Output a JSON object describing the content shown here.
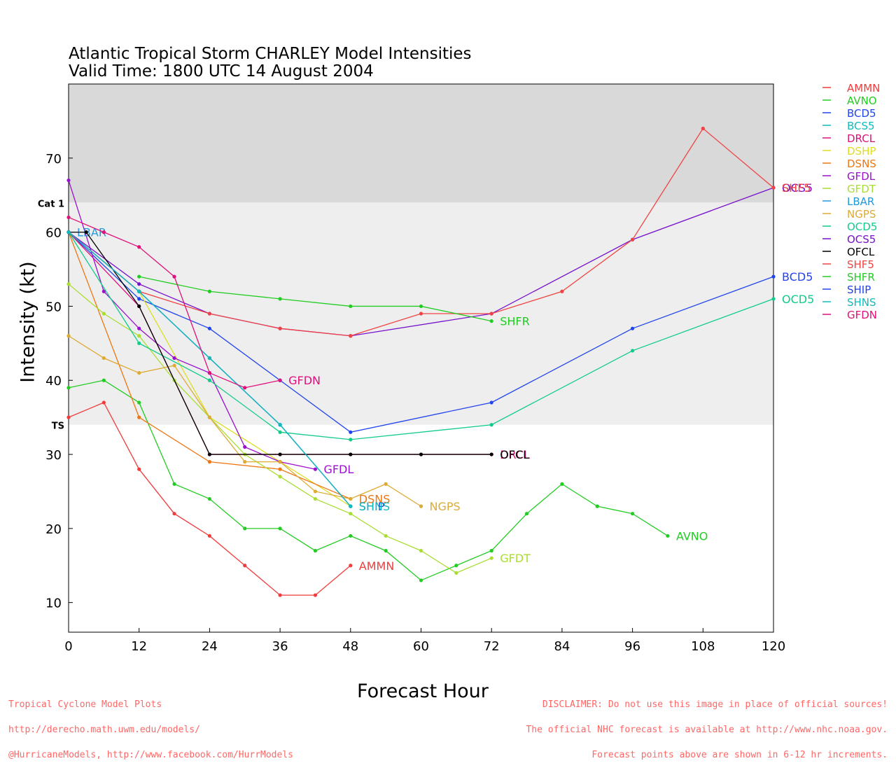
{
  "header": {
    "title": "Atlantic Tropical Storm CHARLEY Model Intensities",
    "subtitle": "Valid Time: 1800 UTC 14 August 2004"
  },
  "footer": {
    "left_lines": [
      "Tropical Cyclone Model Plots",
      "http://derecho.math.uwm.edu/models/",
      "@HurricaneModels, http://www.facebook.com/HurrModels"
    ],
    "right_lines": [
      "DISCLAIMER: Do not use this image in place of official sources!",
      "The official NHC forecast is available at http://www.nhc.noaa.gov.",
      "Forecast points above are shown in 6-12 hr increments."
    ]
  },
  "chart_data": {
    "type": "line",
    "title": "Atlantic Tropical Storm CHARLEY Model Intensities",
    "subtitle": "Valid Time: 1800 UTC 14 August 2004",
    "xlabel": "Forecast Hour",
    "ylabel": "Intensity (kt)",
    "xlim": [
      0,
      120
    ],
    "ylim": [
      6,
      80
    ],
    "x_ticks": [
      0,
      12,
      24,
      36,
      48,
      60,
      72,
      84,
      96,
      108,
      120
    ],
    "y_ticks": [
      10,
      20,
      30,
      40,
      50,
      60,
      70
    ],
    "bands": [
      {
        "label": "Cat 1",
        "from": 64,
        "to": 80,
        "color": "#d9d9d9"
      },
      {
        "label": "TS",
        "from": 34,
        "to": 64,
        "color": "#eeeeee"
      }
    ],
    "legend_position": "right",
    "series": [
      {
        "name": "AMMN",
        "color": "#f03c3c",
        "end_label": "AMMN",
        "points": [
          [
            0,
            35
          ],
          [
            6,
            37
          ],
          [
            12,
            28
          ],
          [
            18,
            22
          ],
          [
            24,
            19
          ],
          [
            30,
            15
          ],
          [
            36,
            11
          ],
          [
            42,
            11
          ],
          [
            48,
            15
          ]
        ]
      },
      {
        "name": "AVNO",
        "color": "#22cc22",
        "end_label": "AVNO",
        "points": [
          [
            0,
            39
          ],
          [
            6,
            40
          ],
          [
            12,
            37
          ],
          [
            18,
            26
          ],
          [
            24,
            24
          ],
          [
            30,
            20
          ],
          [
            36,
            20
          ],
          [
            42,
            17
          ],
          [
            48,
            19
          ],
          [
            54,
            17
          ],
          [
            60,
            13
          ],
          [
            66,
            15
          ],
          [
            72,
            17
          ],
          [
            78,
            22
          ],
          [
            84,
            26
          ],
          [
            90,
            23
          ],
          [
            96,
            22
          ],
          [
            102,
            19
          ]
        ]
      },
      {
        "name": "BCD5",
        "color": "#2244ee",
        "end_label": "BCD5",
        "points": [
          [
            0,
            60
          ],
          [
            12,
            51
          ],
          [
            24,
            47
          ],
          [
            36,
            40
          ],
          [
            48,
            33
          ],
          [
            72,
            37
          ],
          [
            96,
            47
          ],
          [
            120,
            54
          ]
        ]
      },
      {
        "name": "BCS5",
        "color": "#11bbbb",
        "end_label": "",
        "points": [
          [
            0,
            60
          ],
          [
            12,
            52
          ],
          [
            24,
            43
          ],
          [
            36,
            34
          ],
          [
            48,
            23
          ]
        ]
      },
      {
        "name": "DRCL",
        "color": "#e0107a",
        "end_label": "DRCL",
        "points": [
          [
            0,
            60
          ],
          [
            12,
            50
          ],
          [
            24,
            30
          ],
          [
            36,
            30
          ],
          [
            48,
            30
          ],
          [
            60,
            30
          ],
          [
            72,
            30
          ]
        ]
      },
      {
        "name": "DSHP",
        "color": "#dddd22",
        "end_label": "",
        "points": [
          [
            0,
            60
          ],
          [
            12,
            52
          ],
          [
            24,
            35
          ],
          [
            36,
            29
          ],
          [
            48,
            23
          ]
        ]
      },
      {
        "name": "DSNS",
        "color": "#ee7711",
        "end_label": "DSNS",
        "points": [
          [
            0,
            60
          ],
          [
            12,
            35
          ],
          [
            24,
            29
          ],
          [
            36,
            28
          ],
          [
            48,
            24
          ]
        ]
      },
      {
        "name": "GFDL",
        "color": "#9911cc",
        "end_label": "GFDL",
        "points": [
          [
            0,
            67
          ],
          [
            6,
            52
          ],
          [
            12,
            47
          ],
          [
            18,
            43
          ],
          [
            24,
            41
          ],
          [
            30,
            31
          ],
          [
            36,
            29
          ],
          [
            42,
            28
          ]
        ]
      },
      {
        "name": "GFDT",
        "color": "#aadd33",
        "end_label": "GFDT",
        "points": [
          [
            0,
            53
          ],
          [
            6,
            49
          ],
          [
            12,
            46
          ],
          [
            18,
            40
          ],
          [
            24,
            35
          ],
          [
            30,
            30
          ],
          [
            36,
            27
          ],
          [
            42,
            24
          ],
          [
            48,
            22
          ],
          [
            54,
            19
          ],
          [
            60,
            17
          ],
          [
            66,
            14
          ],
          [
            72,
            16
          ]
        ]
      },
      {
        "name": "LBAR",
        "color": "#2299dd",
        "end_label": "LBAR",
        "points": [
          [
            0,
            60
          ]
        ]
      },
      {
        "name": "NGPS",
        "color": "#ddaa33",
        "end_label": "NGPS",
        "points": [
          [
            0,
            46
          ],
          [
            6,
            43
          ],
          [
            12,
            41
          ],
          [
            18,
            42
          ],
          [
            24,
            35
          ],
          [
            30,
            29
          ],
          [
            36,
            29
          ],
          [
            42,
            25
          ],
          [
            48,
            24
          ],
          [
            54,
            26
          ],
          [
            60,
            23
          ]
        ]
      },
      {
        "name": "OCD5",
        "color": "#11cc88",
        "end_label": "OCD5",
        "points": [
          [
            0,
            60
          ],
          [
            12,
            45
          ],
          [
            24,
            40
          ],
          [
            36,
            33
          ],
          [
            48,
            32
          ],
          [
            72,
            34
          ],
          [
            96,
            44
          ],
          [
            120,
            51
          ]
        ]
      },
      {
        "name": "OCS5",
        "color": "#7711cc",
        "end_label": "OCS5",
        "points": [
          [
            0,
            60
          ],
          [
            12,
            53
          ],
          [
            24,
            49
          ],
          [
            36,
            47
          ],
          [
            48,
            46
          ],
          [
            72,
            49
          ],
          [
            96,
            59
          ],
          [
            120,
            66
          ]
        ]
      },
      {
        "name": "OFCL",
        "color": "#000000",
        "end_label": "OFCL",
        "points": [
          [
            0,
            60
          ],
          [
            3,
            60
          ],
          [
            12,
            50
          ],
          [
            24,
            30
          ],
          [
            36,
            30
          ],
          [
            48,
            30
          ],
          [
            60,
            30
          ],
          [
            72,
            30
          ]
        ]
      },
      {
        "name": "SHF5",
        "color": "#f04444",
        "end_label": "SHF5",
        "points": [
          [
            0,
            60
          ],
          [
            12,
            52
          ],
          [
            24,
            49
          ],
          [
            36,
            47
          ],
          [
            48,
            46
          ],
          [
            60,
            49
          ],
          [
            72,
            49
          ],
          [
            84,
            52
          ],
          [
            96,
            59
          ],
          [
            108,
            74
          ],
          [
            120,
            66
          ]
        ]
      },
      {
        "name": "SHFR",
        "color": "#22cc22",
        "end_label": "SHFR",
        "points": [
          [
            12,
            54
          ],
          [
            24,
            52
          ],
          [
            36,
            51
          ],
          [
            48,
            50
          ],
          [
            60,
            50
          ],
          [
            72,
            48
          ]
        ]
      },
      {
        "name": "SHIP",
        "color": "#2244ee",
        "end_label": "SHIP",
        "points": [
          [
            0,
            60
          ],
          [
            12,
            52
          ],
          [
            24,
            43
          ],
          [
            36,
            34
          ],
          [
            48,
            23
          ]
        ]
      },
      {
        "name": "SHNS",
        "color": "#11bbbb",
        "end_label": "SHNS",
        "points": [
          [
            0,
            60
          ],
          [
            12,
            52
          ],
          [
            24,
            43
          ],
          [
            36,
            34
          ],
          [
            48,
            23
          ]
        ]
      },
      {
        "name": "GFDN",
        "color": "#e0107a",
        "end_label": "GFDN",
        "points": [
          [
            0,
            62
          ],
          [
            6,
            60
          ],
          [
            12,
            58
          ],
          [
            18,
            54
          ],
          [
            24,
            41
          ],
          [
            30,
            39
          ],
          [
            36,
            40
          ]
        ]
      }
    ]
  }
}
